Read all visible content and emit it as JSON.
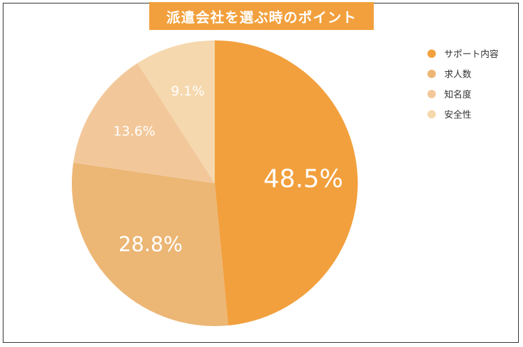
{
  "chart_data": {
    "type": "pie",
    "title": "派遣会社を選ぶ時のポイント",
    "categories": [
      "サポート内容",
      "求人数",
      "知名度",
      "安全性"
    ],
    "values": [
      48.5,
      28.8,
      13.6,
      9.1
    ],
    "value_labels": [
      "48.5%",
      "28.8%",
      "13.6%",
      "9.1%"
    ],
    "colors": [
      "#f2a03d",
      "#ecb675",
      "#f2c89b",
      "#f6d8ae"
    ],
    "legend_position": "top-right"
  }
}
